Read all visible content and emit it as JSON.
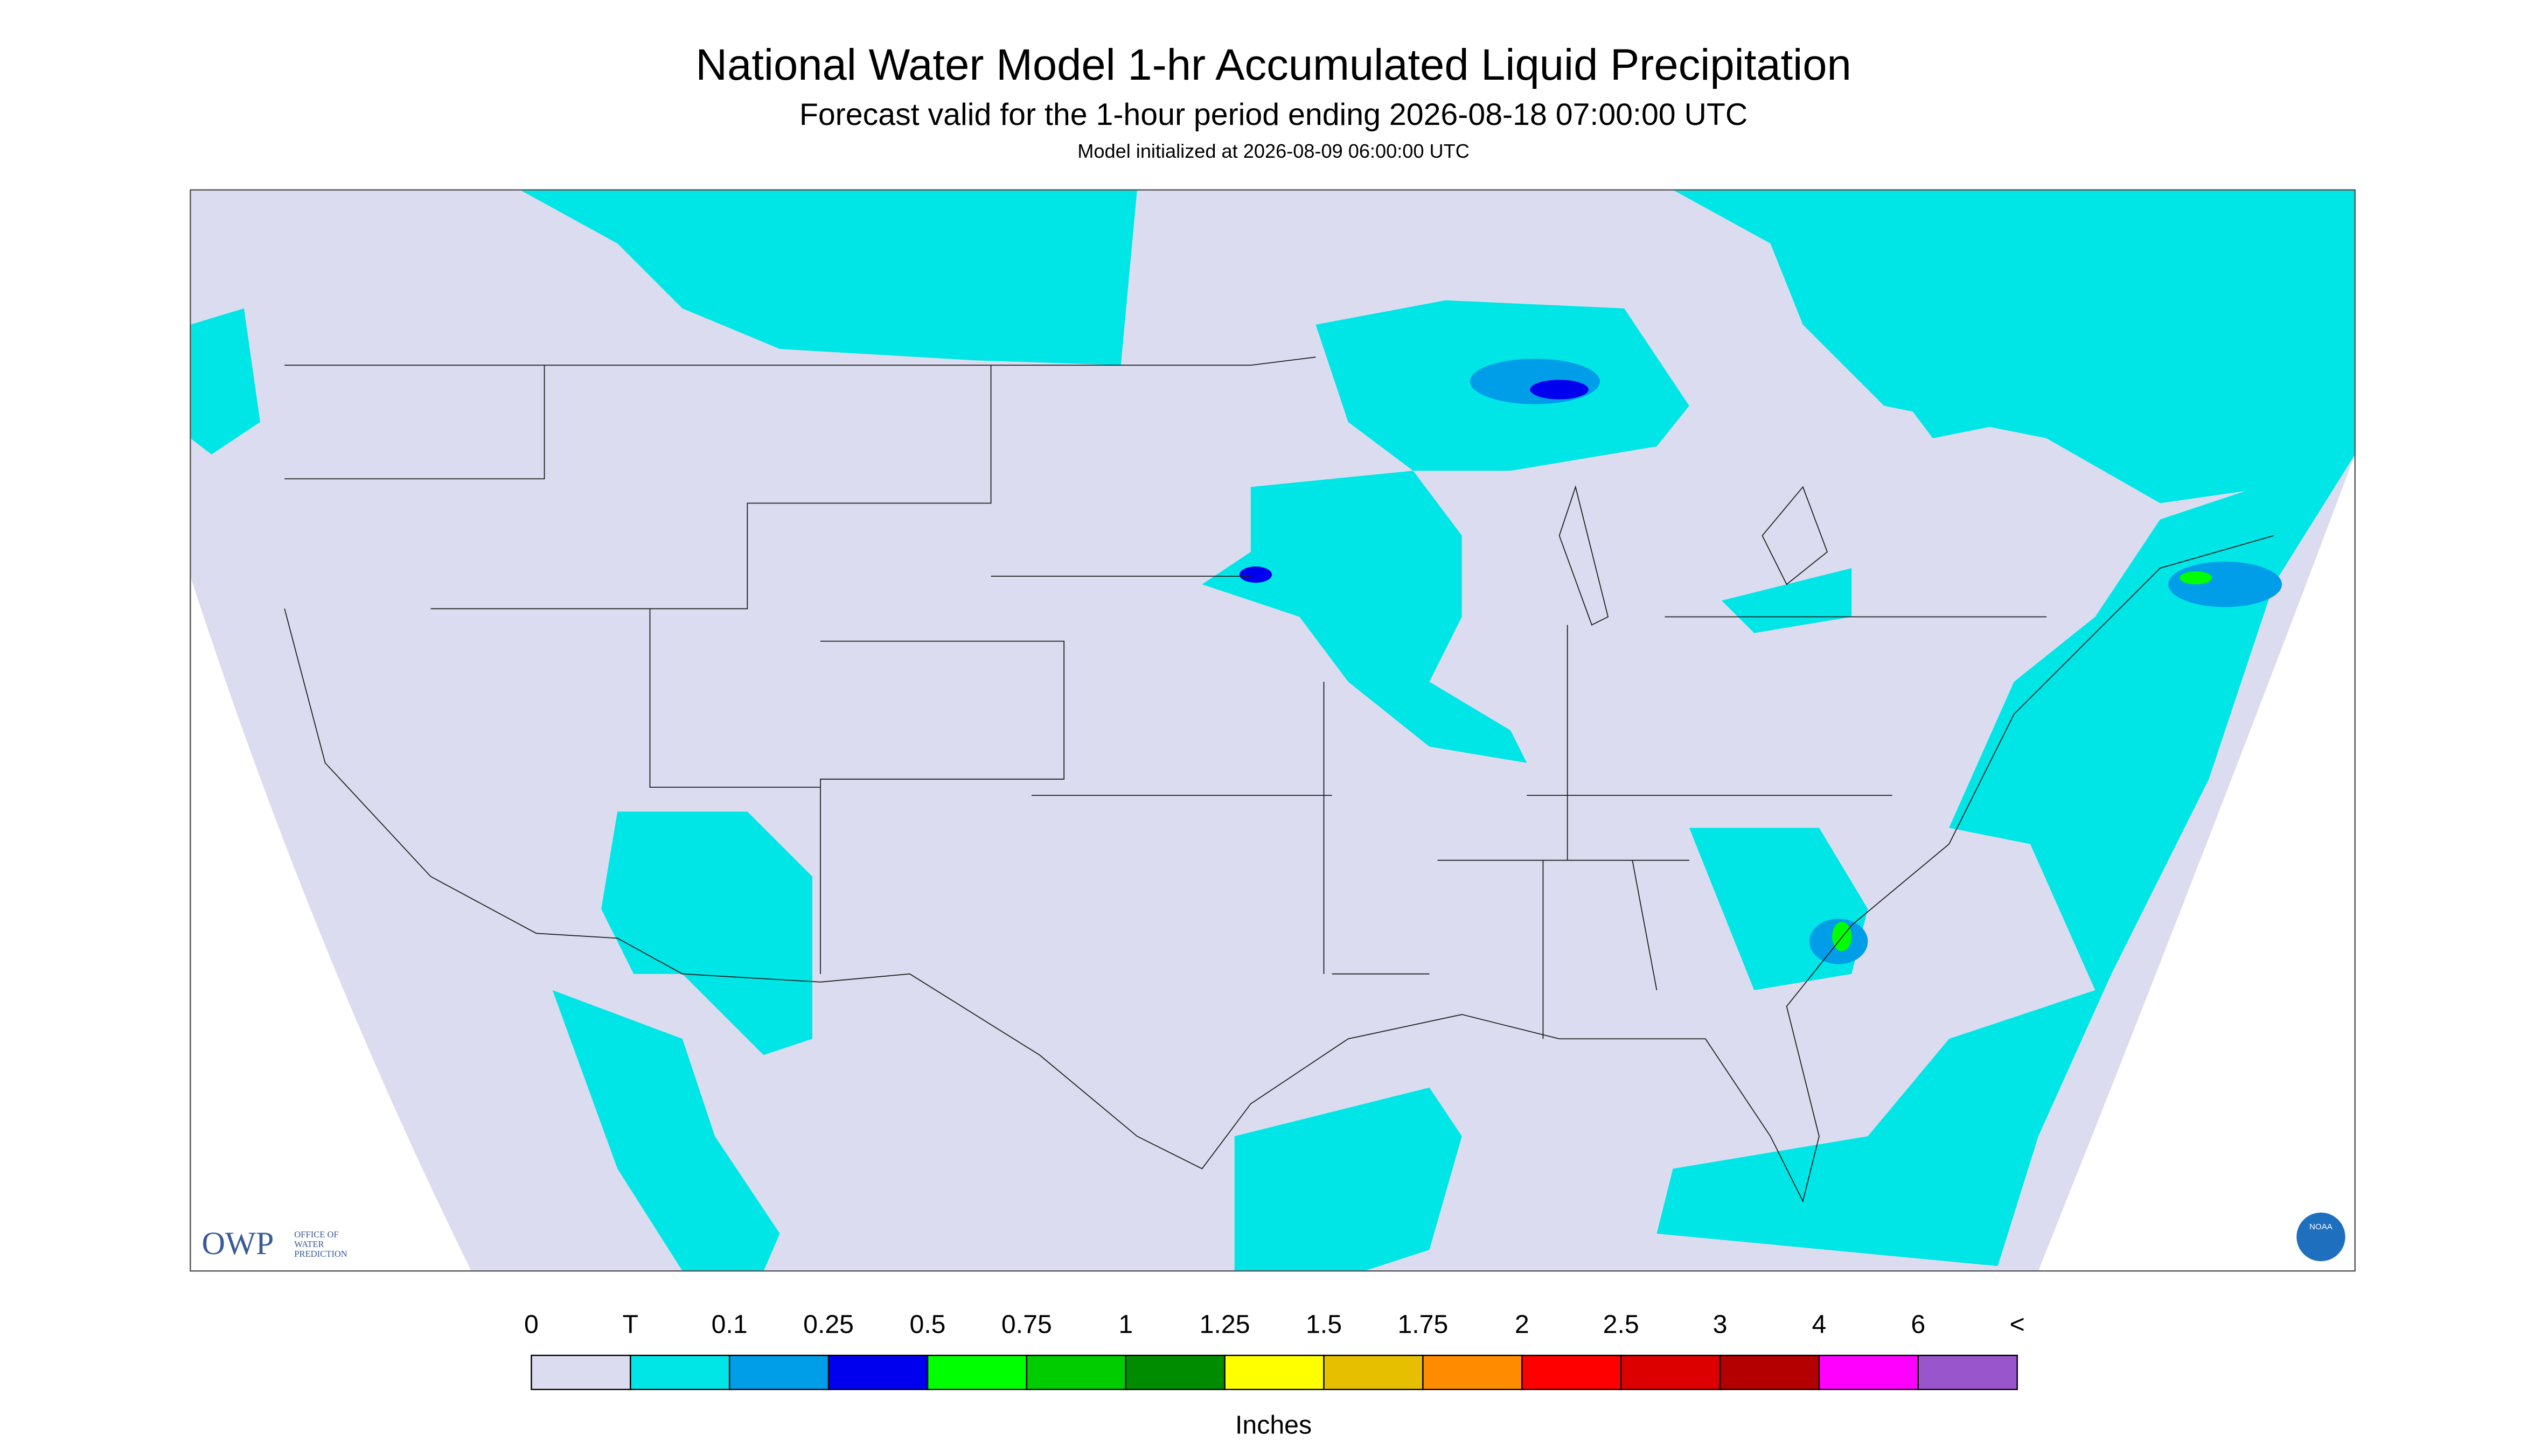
{
  "header": {
    "title": "National Water Model 1-hr Accumulated Liquid Precipitation",
    "subtitle": "Forecast valid for the 1-hour period ending 2026-08-18 07:00:00 UTC",
    "note": "Model initialized at 2026-08-09 06:00:00 UTC"
  },
  "legend": {
    "labels": [
      "0",
      "T",
      "0.1",
      "0.25",
      "0.5",
      "0.75",
      "1",
      "1.25",
      "1.5",
      "1.75",
      "2",
      "2.5",
      "3",
      "4",
      "6",
      "<"
    ],
    "colors": [
      "#dcdcf0",
      "#00e6e6",
      "#009ee8",
      "#0000ee",
      "#00ff00",
      "#00cc00",
      "#008c00",
      "#ffff00",
      "#e6c000",
      "#ff8c00",
      "#ff0000",
      "#dc0000",
      "#b40000",
      "#ff00ff",
      "#9955cc"
    ],
    "unit": "Inches"
  },
  "logos": {
    "owp": "OWP",
    "owp_lines": [
      "OFFICE OF",
      "WATER",
      "PREDICTION"
    ],
    "noaa": "NOAA"
  }
}
